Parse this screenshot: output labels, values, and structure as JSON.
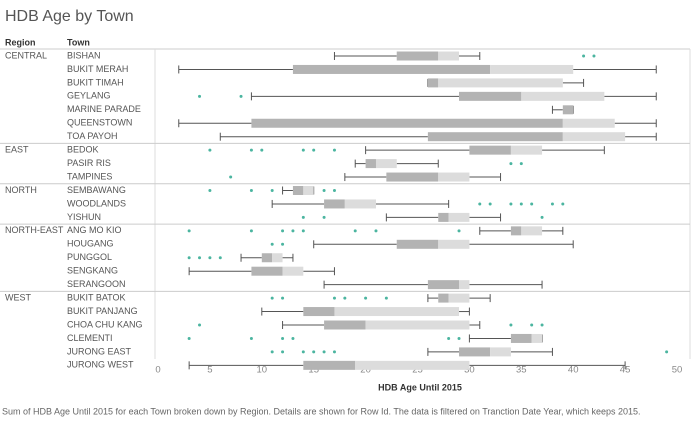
{
  "chart_data": {
    "type": "boxplot",
    "title": "HDB Age by Town",
    "row_headers": [
      "Region",
      "Town"
    ],
    "xlabel": "HDB Age Until 2015",
    "caption": "Sum of HDB Age Until 2015 for each Town broken down by Region.  Details are shown for Row Id. The data is filtered on Tranction Date Year, which keeps 2015.",
    "xlim": [
      0,
      50
    ],
    "xticks": [
      0,
      5,
      10,
      15,
      20,
      25,
      30,
      35,
      40,
      45,
      50
    ],
    "box_colors": [
      "#b3b3b3",
      "#dcdcdc"
    ],
    "whisker_color": "#555555",
    "outlier_color": "#4bb5a0",
    "groups": [
      {
        "region": "CENTRAL",
        "towns": [
          {
            "name": "BISHAN",
            "min": 17,
            "q1": 23,
            "median": 27,
            "q3": 29,
            "max": 31,
            "outliers": [
              41,
              42
            ]
          },
          {
            "name": "BUKIT MERAH",
            "min": 2,
            "q1": 13,
            "median": 32,
            "q3": 40,
            "max": 48,
            "outliers": []
          },
          {
            "name": "BUKIT TIMAH",
            "min": 26,
            "q1": 26,
            "median": 27,
            "q3": 39,
            "max": 41,
            "outliers": []
          },
          {
            "name": "GEYLANG",
            "min": 9,
            "q1": 29,
            "median": 35,
            "q3": 43,
            "max": 48,
            "outliers": [
              4,
              8
            ]
          },
          {
            "name": "MARINE PARADE",
            "min": 38,
            "q1": 39,
            "median": 40,
            "q3": 40,
            "max": 40,
            "outliers": []
          },
          {
            "name": "QUEENSTOWN",
            "min": 2,
            "q1": 9,
            "median": 39,
            "q3": 44,
            "max": 48,
            "outliers": []
          },
          {
            "name": "TOA PAYOH",
            "min": 6,
            "q1": 26,
            "median": 39,
            "q3": 45,
            "max": 48,
            "outliers": []
          }
        ]
      },
      {
        "region": "EAST",
        "towns": [
          {
            "name": "BEDOK",
            "min": 20,
            "q1": 30,
            "median": 34,
            "q3": 37,
            "max": 43,
            "outliers": [
              5,
              9,
              10,
              14,
              15,
              17
            ]
          },
          {
            "name": "PASIR RIS",
            "min": 19,
            "q1": 20,
            "median": 21,
            "q3": 23,
            "max": 27,
            "outliers": [
              34,
              35
            ]
          },
          {
            "name": "TAMPINES",
            "min": 18,
            "q1": 22,
            "median": 27,
            "q3": 30,
            "max": 33,
            "outliers": [
              7
            ]
          }
        ]
      },
      {
        "region": "NORTH",
        "towns": [
          {
            "name": "SEMBAWANG",
            "min": 12,
            "q1": 13,
            "median": 14,
            "q3": 15,
            "max": 15,
            "outliers": [
              5,
              9,
              11,
              16,
              17
            ]
          },
          {
            "name": "WOODLANDS",
            "min": 11,
            "q1": 16,
            "median": 18,
            "q3": 21,
            "max": 28,
            "outliers": [
              31,
              32,
              34,
              35,
              36,
              38,
              39
            ]
          },
          {
            "name": "YISHUN",
            "min": 22,
            "q1": 27,
            "median": 28,
            "q3": 30,
            "max": 33,
            "outliers": [
              14,
              16,
              37
            ]
          }
        ]
      },
      {
        "region": "NORTH-EAST",
        "towns": [
          {
            "name": "ANG MO KIO",
            "min": 31,
            "q1": 34,
            "median": 35,
            "q3": 37,
            "max": 39,
            "outliers": [
              3,
              9,
              12,
              13,
              14,
              19,
              21,
              29
            ]
          },
          {
            "name": "HOUGANG",
            "min": 15,
            "q1": 23,
            "median": 27,
            "q3": 30,
            "max": 40,
            "outliers": [
              11,
              12
            ]
          },
          {
            "name": "PUNGGOL",
            "min": 8,
            "q1": 10,
            "median": 11,
            "q3": 12,
            "max": 13,
            "outliers": [
              3,
              4,
              5,
              6
            ]
          },
          {
            "name": "SENGKANG",
            "min": 3,
            "q1": 9,
            "median": 12,
            "q3": 14,
            "max": 17,
            "outliers": []
          },
          {
            "name": "SERANGOON",
            "min": 16,
            "q1": 26,
            "median": 29,
            "q3": 30,
            "max": 37,
            "outliers": []
          }
        ]
      },
      {
        "region": "WEST",
        "towns": [
          {
            "name": "BUKIT BATOK",
            "min": 26,
            "q1": 27,
            "median": 28,
            "q3": 30,
            "max": 32,
            "outliers": [
              11,
              12,
              17,
              18,
              20,
              22
            ]
          },
          {
            "name": "BUKIT PANJANG",
            "min": 10,
            "q1": 14,
            "median": 17,
            "q3": 29,
            "max": 30,
            "outliers": []
          },
          {
            "name": "CHOA CHU KANG",
            "min": 12,
            "q1": 16,
            "median": 20,
            "q3": 30,
            "max": 31,
            "outliers": [
              4,
              34,
              36,
              37
            ]
          },
          {
            "name": "CLEMENTI",
            "min": 30,
            "q1": 34,
            "median": 36,
            "q3": 37,
            "max": 37,
            "outliers": [
              3,
              9,
              12,
              13,
              28,
              29
            ]
          },
          {
            "name": "JURONG EAST",
            "min": 26,
            "q1": 29,
            "median": 32,
            "q3": 34,
            "max": 38,
            "outliers": [
              11,
              12,
              14,
              15,
              16,
              17,
              49
            ]
          },
          {
            "name": "JURONG WEST",
            "min": 3,
            "q1": 14,
            "median": 19,
            "q3": 30,
            "max": 45,
            "outliers": []
          }
        ]
      }
    ]
  }
}
